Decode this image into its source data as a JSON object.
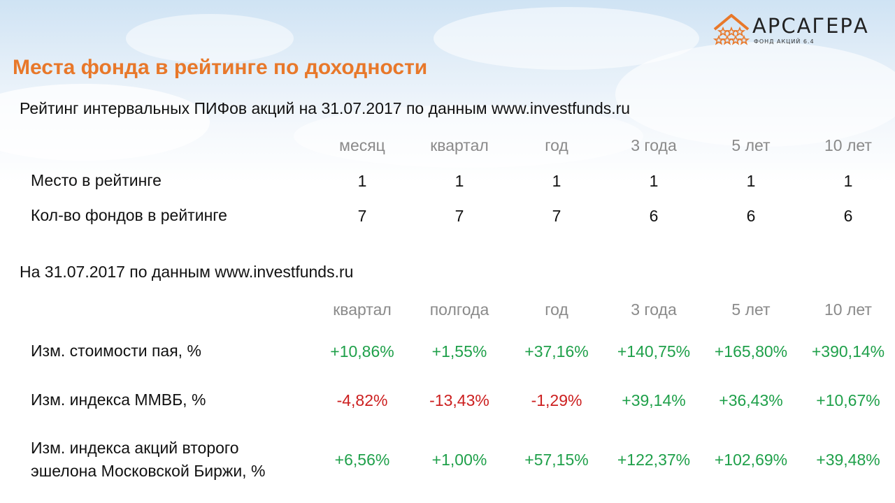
{
  "logo": {
    "name": "АРСАГЕРА",
    "subtitle": "ФОНД АКЦИЙ 6.4",
    "colors": {
      "accent": "#e8782a",
      "text": "#222222"
    }
  },
  "title": "Места фонда в рейтинге по доходности",
  "rating_section": {
    "title": "Рейтинг интервальных ПИФов акций на 31.07.2017 по данным www.investfunds.ru",
    "columns": [
      "месяц",
      "квартал",
      "год",
      "3 года",
      "5 лет",
      "10 лет"
    ],
    "rows": [
      {
        "label": "Место в рейтинге",
        "values": [
          "1",
          "1",
          "1",
          "1",
          "1",
          "1"
        ]
      },
      {
        "label": "Кол-во фондов в рейтинге",
        "values": [
          "7",
          "7",
          "7",
          "6",
          "6",
          "6"
        ]
      }
    ]
  },
  "returns_section": {
    "title": "На 31.07.2017 по данным www.investfunds.ru",
    "columns": [
      "квартал",
      "полгода",
      "год",
      "3 года",
      "5 лет",
      "10 лет"
    ],
    "rows": [
      {
        "label": "Изм. стоимости пая, %",
        "values": [
          "+10,86%",
          "+1,55%",
          "+37,16%",
          "+140,75%",
          "+165,80%",
          "+390,14%"
        ]
      },
      {
        "label": "Изм. индекса ММВБ, %",
        "values": [
          "-4,82%",
          "-13,43%",
          "-1,29%",
          "+39,14%",
          "+36,43%",
          "+10,67%"
        ]
      },
      {
        "label_line1": "Изм. индекса акций второго",
        "label_line2": "эшелона Московской Биржи, %",
        "values": [
          "+6,56%",
          "+1,00%",
          "+57,15%",
          "+122,37%",
          "+102,69%",
          "+39,48%"
        ]
      }
    ]
  },
  "colors": {
    "title": "#e8782a",
    "positive": "#1fa04a",
    "negative": "#cc1f1f",
    "column_header": "#8a8a8a"
  }
}
